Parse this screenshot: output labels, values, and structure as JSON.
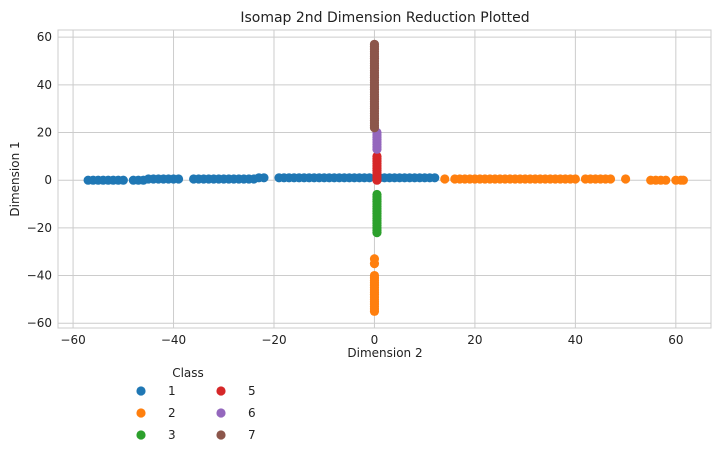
{
  "chart_data": {
    "type": "scatter",
    "title": "Isomap 2nd Dimension Reduction Plotted",
    "xlabel": "Dimension 2",
    "ylabel": "Dimension 1",
    "xlim": [
      -63,
      67
    ],
    "ylim": [
      -62,
      63
    ],
    "xticks": [
      -60,
      -40,
      -20,
      0,
      20,
      40,
      60
    ],
    "yticks": [
      -60,
      -40,
      -20,
      0,
      20,
      40,
      60
    ],
    "xtick_labels": [
      "−60",
      "−40",
      "−20",
      "0",
      "20",
      "40",
      "60"
    ],
    "ytick_labels": [
      "−60",
      "−40",
      "−20",
      "0",
      "20",
      "40",
      "60"
    ],
    "grid": true,
    "legend": {
      "title": "Class",
      "placement": "below-left, outside plot",
      "columns": 2
    },
    "series": [
      {
        "name": "1",
        "color": "#1f77b4",
        "points": [
          [
            -57,
            0
          ],
          [
            -56,
            0
          ],
          [
            -55,
            0
          ],
          [
            -54,
            0
          ],
          [
            -53,
            0
          ],
          [
            -52,
            0
          ],
          [
            -51,
            0
          ],
          [
            -50,
            0
          ],
          [
            -48,
            0
          ],
          [
            -47,
            0
          ],
          [
            -46,
            0
          ],
          [
            -45,
            0.5
          ],
          [
            -44,
            0.5
          ],
          [
            -43,
            0.5
          ],
          [
            -42,
            0.5
          ],
          [
            -41,
            0.5
          ],
          [
            -40,
            0.5
          ],
          [
            -39,
            0.5
          ],
          [
            -36,
            0.5
          ],
          [
            -35,
            0.5
          ],
          [
            -34,
            0.5
          ],
          [
            -33,
            0.5
          ],
          [
            -32,
            0.5
          ],
          [
            -31,
            0.5
          ],
          [
            -30,
            0.5
          ],
          [
            -29,
            0.5
          ],
          [
            -28,
            0.5
          ],
          [
            -27,
            0.5
          ],
          [
            -26,
            0.5
          ],
          [
            -25,
            0.5
          ],
          [
            -24,
            0.5
          ],
          [
            -23,
            1
          ],
          [
            -22,
            1
          ],
          [
            -19,
            1
          ],
          [
            -18,
            1
          ],
          [
            -17,
            1
          ],
          [
            -16,
            1
          ],
          [
            -15,
            1
          ],
          [
            -14,
            1
          ],
          [
            -13,
            1
          ],
          [
            -12,
            1
          ],
          [
            -11,
            1
          ],
          [
            -10,
            1
          ],
          [
            -9,
            1
          ],
          [
            -8,
            1
          ],
          [
            -7,
            1
          ],
          [
            -6,
            1
          ],
          [
            -5,
            1
          ],
          [
            -4,
            1
          ],
          [
            -3,
            1
          ],
          [
            -2,
            1
          ],
          [
            -1,
            1
          ],
          [
            1,
            1
          ],
          [
            2,
            1
          ],
          [
            3,
            1
          ],
          [
            4,
            1
          ],
          [
            5,
            1
          ],
          [
            6,
            1
          ],
          [
            7,
            1
          ],
          [
            8,
            1
          ],
          [
            9,
            1
          ],
          [
            10,
            1
          ],
          [
            11,
            1
          ],
          [
            12,
            1
          ]
        ]
      },
      {
        "name": "2",
        "color": "#ff7f0e",
        "points": [
          [
            14,
            0.5
          ],
          [
            16,
            0.5
          ],
          [
            17,
            0.5
          ],
          [
            18,
            0.5
          ],
          [
            19,
            0.5
          ],
          [
            20,
            0.5
          ],
          [
            21,
            0.5
          ],
          [
            22,
            0.5
          ],
          [
            23,
            0.5
          ],
          [
            24,
            0.5
          ],
          [
            25,
            0.5
          ],
          [
            26,
            0.5
          ],
          [
            27,
            0.5
          ],
          [
            28,
            0.5
          ],
          [
            29,
            0.5
          ],
          [
            30,
            0.5
          ],
          [
            31,
            0.5
          ],
          [
            32,
            0.5
          ],
          [
            33,
            0.5
          ],
          [
            34,
            0.5
          ],
          [
            35,
            0.5
          ],
          [
            36,
            0.5
          ],
          [
            37,
            0.5
          ],
          [
            38,
            0.5
          ],
          [
            39,
            0.5
          ],
          [
            40,
            0.5
          ],
          [
            42,
            0.5
          ],
          [
            43,
            0.5
          ],
          [
            44,
            0.5
          ],
          [
            45,
            0.5
          ],
          [
            46,
            0.5
          ],
          [
            47,
            0.5
          ],
          [
            50,
            0.5
          ],
          [
            55,
            0
          ],
          [
            56,
            0
          ],
          [
            57,
            0
          ],
          [
            58,
            0
          ],
          [
            60,
            0
          ],
          [
            61,
            0
          ],
          [
            61.5,
            0
          ],
          [
            0,
            -35
          ],
          [
            0,
            -33
          ],
          [
            0,
            -40
          ],
          [
            0,
            -41
          ],
          [
            0,
            -42
          ],
          [
            0,
            -43
          ],
          [
            0,
            -44
          ],
          [
            0,
            -45
          ],
          [
            0,
            -46
          ],
          [
            0,
            -47
          ],
          [
            0,
            -48
          ],
          [
            0,
            -49
          ],
          [
            0,
            -50
          ],
          [
            0,
            -51
          ],
          [
            0,
            -52
          ],
          [
            0,
            -53
          ],
          [
            0,
            -54
          ],
          [
            0,
            -55
          ]
        ]
      },
      {
        "name": "3",
        "color": "#2ca02c",
        "points": [
          [
            0.5,
            -6
          ],
          [
            0.5,
            -7
          ],
          [
            0.5,
            -8
          ],
          [
            0.5,
            -9
          ],
          [
            0.5,
            -10
          ],
          [
            0.5,
            -11
          ],
          [
            0.5,
            -12
          ],
          [
            0.5,
            -13
          ],
          [
            0.5,
            -14
          ],
          [
            0.5,
            -15
          ],
          [
            0.5,
            -16
          ],
          [
            0.5,
            -17
          ],
          [
            0.5,
            -18
          ],
          [
            0.5,
            -19
          ],
          [
            0.5,
            -20
          ],
          [
            0.5,
            -21
          ],
          [
            0.5,
            -22
          ]
        ]
      },
      {
        "name": "5",
        "color": "#d62728",
        "points": [
          [
            0.5,
            10
          ],
          [
            0.5,
            9
          ],
          [
            0.5,
            8
          ],
          [
            0.5,
            7
          ],
          [
            0.5,
            6
          ],
          [
            0.5,
            5
          ],
          [
            0.5,
            4
          ],
          [
            0.5,
            3
          ],
          [
            0.5,
            2
          ],
          [
            0.5,
            1
          ],
          [
            0.5,
            0
          ]
        ]
      },
      {
        "name": "6",
        "color": "#9467bd",
        "points": [
          [
            0.5,
            20
          ],
          [
            0.5,
            19
          ],
          [
            0.5,
            18
          ],
          [
            0.5,
            17
          ],
          [
            0.5,
            16
          ],
          [
            0.5,
            15
          ],
          [
            0.5,
            14
          ],
          [
            0.5,
            13
          ]
        ]
      },
      {
        "name": "7",
        "color": "#8c564b",
        "points": [
          [
            0,
            57
          ],
          [
            0,
            56
          ],
          [
            0,
            55
          ],
          [
            0,
            54
          ],
          [
            0,
            53
          ],
          [
            0,
            52
          ],
          [
            0,
            51
          ],
          [
            0,
            50
          ],
          [
            0,
            49
          ],
          [
            0,
            48
          ],
          [
            0,
            47
          ],
          [
            0,
            46
          ],
          [
            0,
            45
          ],
          [
            0,
            44
          ],
          [
            0,
            43
          ],
          [
            0,
            42
          ],
          [
            0,
            41
          ],
          [
            0,
            40
          ],
          [
            0,
            39
          ],
          [
            0,
            38
          ],
          [
            0,
            37
          ],
          [
            0,
            36
          ],
          [
            0,
            35
          ],
          [
            0,
            34
          ],
          [
            0,
            33
          ],
          [
            0,
            32
          ],
          [
            0,
            31
          ],
          [
            0,
            30
          ],
          [
            0,
            29
          ],
          [
            0,
            28
          ],
          [
            0,
            27
          ],
          [
            0,
            26
          ],
          [
            0,
            25
          ],
          [
            0,
            24
          ],
          [
            0,
            23
          ],
          [
            0,
            22
          ]
        ]
      }
    ]
  }
}
